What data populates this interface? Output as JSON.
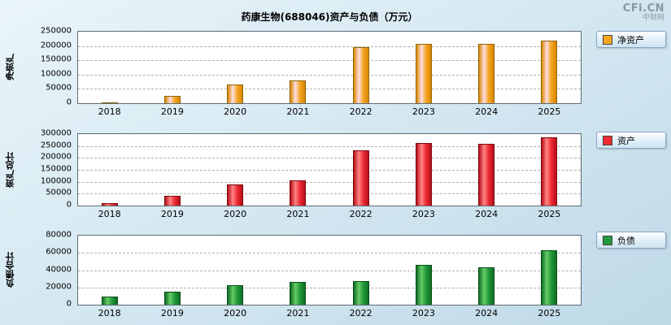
{
  "title": "药康生物(688046)资产与负债（万元）",
  "watermark": {
    "line1": "CFi.CN",
    "line2": "中财网"
  },
  "chart_data": [
    {
      "type": "bar",
      "name": "net-assets",
      "ylabel": "净资产",
      "legend": "净资产",
      "categories": [
        "2018",
        "2019",
        "2020",
        "2021",
        "2022",
        "2023",
        "2024",
        "2025"
      ],
      "values": [
        2000,
        25000,
        65000,
        80000,
        197000,
        207000,
        208000,
        219000
      ],
      "ylim": [
        0,
        250000
      ],
      "yticks": [
        0,
        50000,
        100000,
        150000,
        200000,
        250000
      ],
      "grid": "dashed",
      "legend_position": "right",
      "colors": {
        "base": "#F5A623",
        "light": "#FFD express35E",
        "dark": "#D98700",
        "border": "#8F6400"
      }
    },
    {
      "type": "bar",
      "name": "total-assets",
      "ylabel": "资产总计",
      "legend": "资产",
      "categories": [
        "2018",
        "2019",
        "2020",
        "2021",
        "2022",
        "2023",
        "2024",
        "2025"
      ],
      "values": [
        10000,
        41000,
        90000,
        105000,
        231000,
        261000,
        259000,
        286000
      ],
      "ylim": [
        0,
        300000
      ],
      "yticks": [
        0,
        50000,
        100000,
        150000,
        200000,
        250000,
        300000
      ],
      "grid": "dashed",
      "legend_position": "right",
      "colors": {
        "base": "#EE2B33",
        "light": "#FF8585",
        "dark": "#B80E18",
        "border": "#7A0A10"
      }
    },
    {
      "type": "bar",
      "name": "total-liabilities",
      "ylabel": "负债合计",
      "legend": "负债",
      "categories": [
        "2018",
        "2019",
        "2020",
        "2021",
        "2022",
        "2023",
        "2024",
        "2025"
      ],
      "values": [
        9000,
        15000,
        22500,
        26000,
        27500,
        46000,
        43000,
        63000
      ],
      "ylim": [
        0,
        80000
      ],
      "yticks": [
        0,
        20000,
        40000,
        60000,
        80000
      ],
      "grid": "dashed",
      "legend_position": "right",
      "colors": {
        "base": "#22993B",
        "light": "#66CC66",
        "dark": "#0E6E24",
        "border": "#084D18"
      }
    }
  ]
}
